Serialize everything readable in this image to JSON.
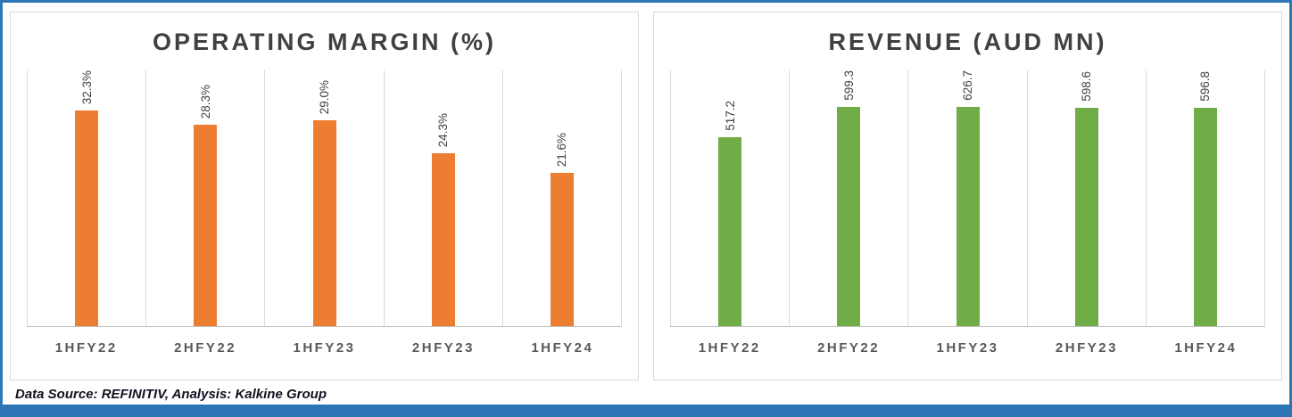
{
  "footer": {
    "source_text": "Data Source: REFINITIV, Analysis: Kalkine Group"
  },
  "colors": {
    "operating_margin_bar": "#ED7D31",
    "revenue_bar": "#70AD47",
    "frame_border": "#2E75B6",
    "bottom_accent": "#2E75B6",
    "gridline": "#D9D9D9"
  },
  "chart_data": [
    {
      "type": "bar",
      "title": "OPERATING MARGIN (%)",
      "categories": [
        "1HFY22",
        "2HFY22",
        "1HFY23",
        "2HFY23",
        "1HFY24"
      ],
      "values": [
        32.3,
        28.3,
        29.0,
        24.3,
        21.6
      ],
      "labels": [
        "32.3%",
        "28.3%",
        "29.0%",
        "24.3%",
        "21.6%"
      ],
      "ylim": [
        0,
        36
      ],
      "xlabel": "",
      "ylabel": "",
      "bar_color": "#ED7D31",
      "grid": "vertical category separators",
      "legend": "none",
      "value_label_rotation": 90
    },
    {
      "type": "bar",
      "title": "REVENUE (AUD MN)",
      "categories": [
        "1HFY22",
        "2HFY22",
        "1HFY23",
        "2HFY23",
        "1HFY24"
      ],
      "values": [
        517.2,
        599.3,
        626.7,
        598.6,
        596.8
      ],
      "labels": [
        "517.2",
        "599.3",
        "626.7",
        "598.6",
        "596.8"
      ],
      "ylim": [
        0,
        700
      ],
      "xlabel": "",
      "ylabel": "",
      "bar_color": "#70AD47",
      "grid": "vertical category separators",
      "legend": "none",
      "value_label_rotation": 90
    }
  ]
}
